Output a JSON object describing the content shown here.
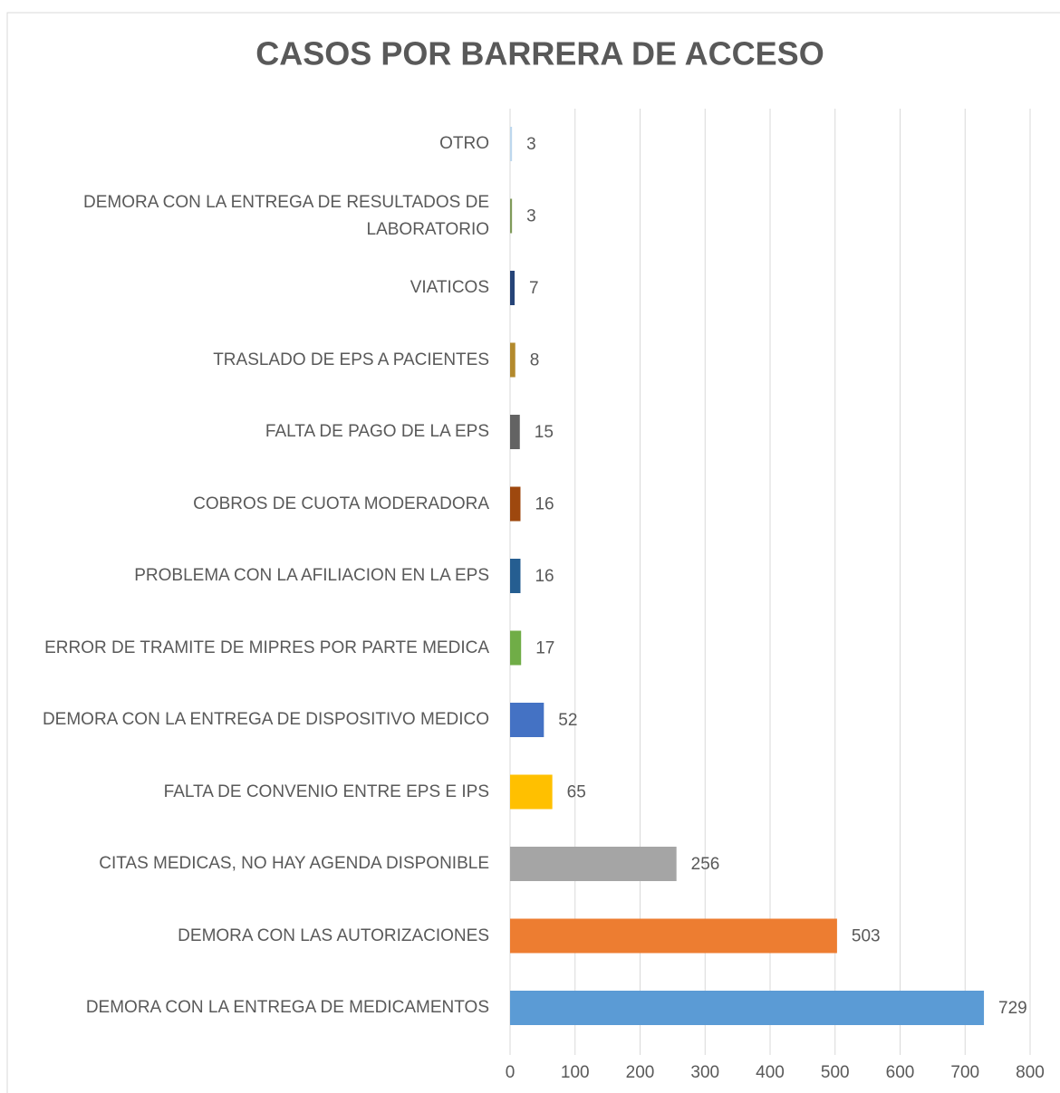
{
  "chart_data": {
    "type": "barh",
    "title": "CASOS POR BARRERA DE ACCESO",
    "categories": [
      "OTRO",
      "DEMORA CON LA ENTREGA DE RESULTADOS DE LABORATORIO",
      "VIATICOS",
      "TRASLADO DE EPS A PACIENTES",
      "FALTA DE PAGO DE LA EPS",
      "COBROS DE CUOTA MODERADORA",
      "PROBLEMA CON LA AFILIACION EN LA EPS",
      "ERROR DE TRAMITE DE MIPRES POR PARTE MEDICA",
      "DEMORA CON LA ENTREGA DE DISPOSITIVO MEDICO",
      "FALTA DE CONVENIO ENTRE EPS E IPS",
      "CITAS MEDICAS, NO HAY AGENDA DISPONIBLE",
      "DEMORA CON LAS AUTORIZACIONES",
      "DEMORA CON LA ENTREGA DE MEDICAMENTOS"
    ],
    "values": [
      3,
      3,
      7,
      8,
      15,
      16,
      16,
      17,
      52,
      65,
      256,
      503,
      729
    ],
    "colors": [
      "#bdd7ee",
      "#7f9a5a",
      "#264478",
      "#b38a2d",
      "#636363",
      "#9e480e",
      "#255e91",
      "#70ad47",
      "#4472c4",
      "#ffc000",
      "#a5a5a5",
      "#ed7d31",
      "#5b9bd5"
    ],
    "xlim": [
      0,
      800
    ],
    "xticks": [
      0,
      100,
      200,
      300,
      400,
      500,
      600,
      700,
      800
    ],
    "grid": true
  }
}
